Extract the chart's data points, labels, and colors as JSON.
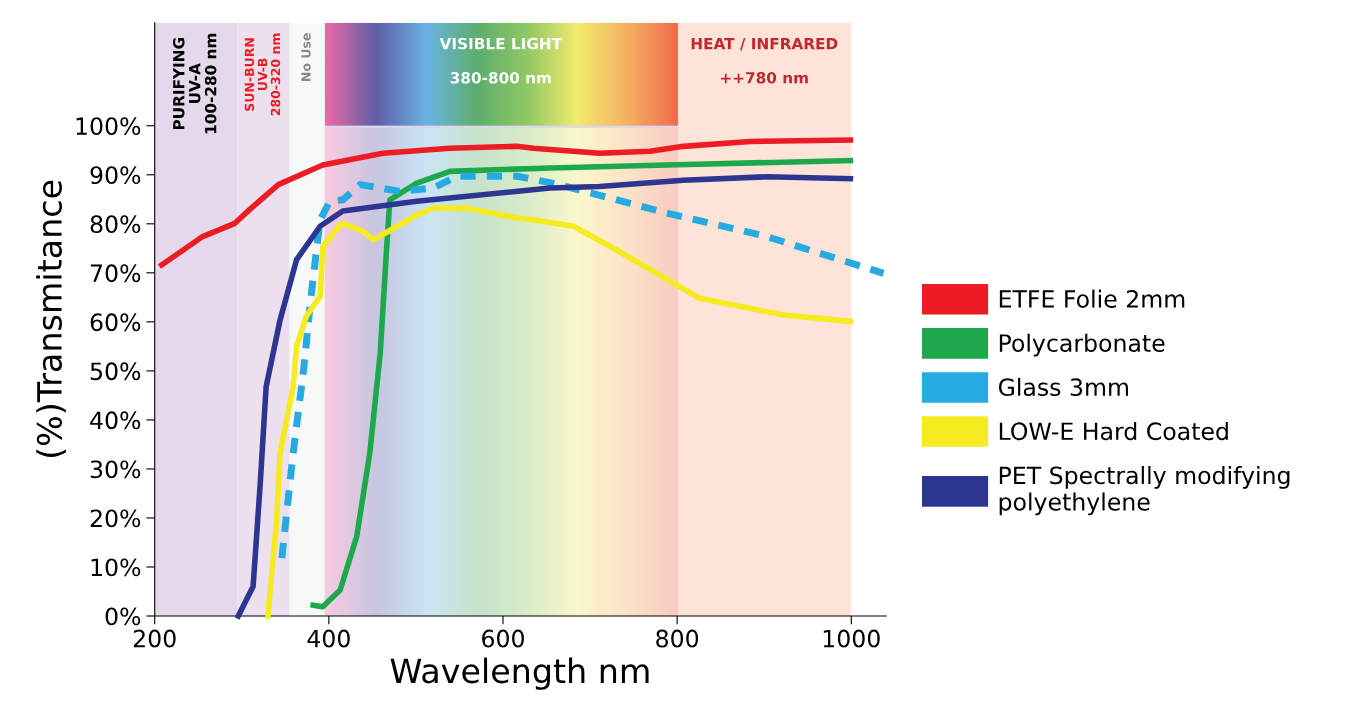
{
  "chart_data": {
    "type": "line",
    "xlabel": "Wavelength nm",
    "ylabel": "(%)Transmitance",
    "xlim": [
      200,
      1040
    ],
    "xticks": [
      200,
      400,
      600,
      800,
      1000
    ],
    "ylim": [
      0,
      121
    ],
    "yticks": [
      {
        "value": 0,
        "label": "0%"
      },
      {
        "value": 10,
        "label": "10%"
      },
      {
        "value": 20,
        "label": "20%"
      },
      {
        "value": 30,
        "label": "30%"
      },
      {
        "value": 40,
        "label": "40%"
      },
      {
        "value": 50,
        "label": "50%"
      },
      {
        "value": 60,
        "label": "60%"
      },
      {
        "value": 70,
        "label": "70%"
      },
      {
        "value": 80,
        "label": "80%"
      },
      {
        "value": 90,
        "label": "90%"
      },
      {
        "value": 100,
        "label": "100%"
      }
    ],
    "grid": false,
    "legend": "right",
    "marker": "none",
    "bands": [
      {
        "axis": "x",
        "from": 200,
        "to": 295,
        "label": "PURIFYING\nUV-A\n100-280 nm",
        "color": "#e3d9ea"
      },
      {
        "axis": "x",
        "from": 295,
        "to": 355,
        "label": "SUN-BURN\nUV-B\n280-320 nm",
        "color": "#ece0ee"
      },
      {
        "axis": "x",
        "from": 355,
        "to": 395,
        "label": "No Use",
        "color": "#f7f8f8"
      },
      {
        "axis": "x",
        "from": 395,
        "to": 800,
        "label": "VISIBLE LIGHT\n\n380-800 nm",
        "color": "#dcd8ea"
      },
      {
        "axis": "x",
        "from": 800,
        "to": 1000,
        "label": "HEAT / INFRARED\n\n++780 nm",
        "color": "#fde3d8"
      }
    ],
    "series": [
      {
        "name": "ETFE Folie 2mm",
        "color": "#ec1c24",
        "line_style": "solid",
        "x": [
          208,
          255,
          292,
          309,
          342,
          393,
          462,
          539,
          616,
          635,
          711,
          769,
          807,
          884,
          999
        ],
        "values": [
          71.6,
          77.4,
          80.1,
          82.9,
          88,
          92,
          94.4,
          95.4,
          95.8,
          95.4,
          94.4,
          94.8,
          95.8,
          96.8,
          97.1
        ]
      },
      {
        "name": "Polycarbonate",
        "color": "#1ea84c",
        "line_style": "solid",
        "x": [
          382,
          393,
          413,
          432,
          447,
          459,
          466,
          470,
          501,
          539,
          654,
          788,
          999
        ],
        "values": [
          2.2,
          1.9,
          5.3,
          16.2,
          33.2,
          53.6,
          74,
          84.9,
          88.3,
          90.7,
          91.4,
          92,
          92.9
        ]
      },
      {
        "name": "Glass 3mm",
        "color": "#27aae1",
        "line_style": "dashed",
        "x": [
          346,
          359,
          371,
          380,
          390,
          401,
          416,
          436,
          482,
          520,
          547,
          616,
          654,
          673,
          788,
          903,
          1037
        ],
        "values": [
          11.8,
          33.2,
          50.2,
          65.9,
          80.8,
          84.6,
          84.9,
          88,
          86.6,
          87.3,
          89.7,
          89.7,
          88.4,
          87.6,
          82.2,
          77.4,
          69.9
        ]
      },
      {
        "name": "LOW-E Hard Coated",
        "color": "#f5eb1e",
        "line_style": "solid",
        "x": [
          330,
          340,
          344,
          359,
          363,
          374,
          390,
          393,
          415,
          439,
          451,
          501,
          520,
          558,
          616,
          635,
          681,
          730,
          826,
          922,
          999
        ],
        "values": [
          0,
          19.6,
          33.2,
          46.8,
          55,
          61.1,
          65.2,
          75.4,
          80.1,
          78.5,
          76.7,
          81.8,
          83.2,
          83.2,
          81.2,
          80.8,
          79.5,
          74.7,
          64.8,
          61.4,
          60.1
        ]
      },
      {
        "name": "PET Spectrally modifying\npolyethylene",
        "color": "#2c3590",
        "line_style": "solid",
        "x": [
          296,
          313,
          321,
          328,
          344,
          363,
          390,
          416,
          501,
          654,
          711,
          807,
          903,
          999
        ],
        "values": [
          0,
          6,
          26.5,
          46.8,
          60.4,
          72.7,
          79.5,
          82.6,
          84.6,
          87.3,
          87.6,
          88.9,
          89.6,
          89.2
        ]
      }
    ]
  }
}
